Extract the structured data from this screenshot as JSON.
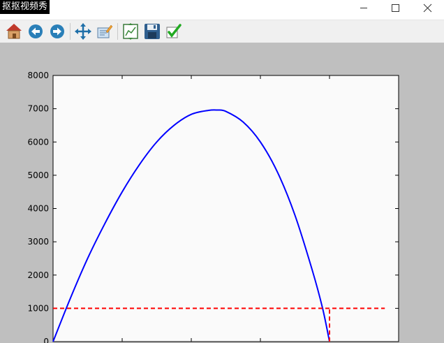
{
  "window": {
    "title": "抠抠视频秀",
    "controls": [
      "minimize-icon",
      "maximize-icon",
      "close-icon"
    ]
  },
  "toolbar": {
    "buttons": [
      {
        "name": "home-button",
        "icon": "home-icon"
      },
      {
        "name": "back-button",
        "icon": "back-arrow-icon"
      },
      {
        "name": "forward-button",
        "icon": "forward-arrow-icon"
      },
      {
        "name": "pan-button",
        "icon": "move-icon"
      },
      {
        "name": "zoom-button",
        "icon": "zoom-edit-icon"
      },
      {
        "name": "configure-subplots-button",
        "icon": "subplots-icon"
      },
      {
        "name": "save-button",
        "icon": "floppy-disk-icon"
      },
      {
        "name": "edit-parameters-button",
        "icon": "checkmark-icon"
      }
    ]
  },
  "chart_data": {
    "type": "line",
    "title": "",
    "xlabel": "",
    "ylabel": "",
    "ylim": [
      0,
      8000
    ],
    "xlim": [
      0,
      100
    ],
    "y_ticks": [
      "0",
      "1000",
      "2000",
      "3000",
      "4000",
      "5000",
      "6000",
      "7000",
      "8000"
    ],
    "x_ticks_positions": [
      0,
      20,
      40,
      60,
      80,
      100
    ],
    "grid": false,
    "series": [
      {
        "color": "#0000ff",
        "style": "solid",
        "x": [
          0,
          5,
          10,
          15,
          20,
          25,
          30,
          35,
          40,
          45,
          47.5,
          50,
          55,
          60,
          65,
          70,
          75,
          78,
          80
        ],
        "y": [
          0,
          1300,
          2500,
          3550,
          4500,
          5320,
          6000,
          6500,
          6830,
          6950,
          6960,
          6920,
          6600,
          6000,
          5080,
          3800,
          2150,
          1000,
          0
        ]
      },
      {
        "color": "#ff0000",
        "style": "dashed",
        "x": [
          0,
          96
        ],
        "y": [
          1000,
          1000
        ]
      },
      {
        "color": "#ff0000",
        "style": "dashed",
        "x": [
          80,
          80
        ],
        "y": [
          0,
          1000
        ]
      }
    ]
  }
}
